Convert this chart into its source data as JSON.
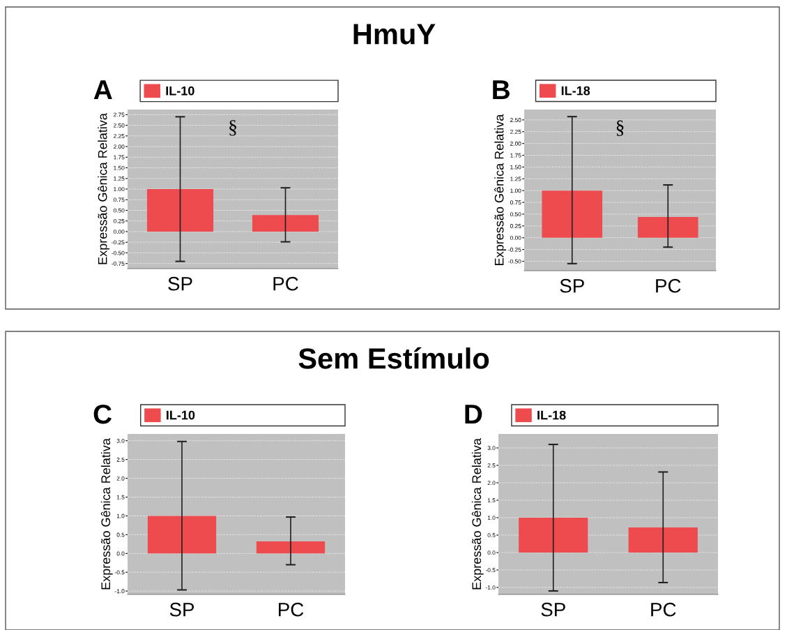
{
  "chart_data": [
    {
      "type": "other",
      "title": "HmuY"
    },
    {
      "type": "bar",
      "annotations": [
        "A",
        "§"
      ],
      "ylabel": "Expressão Gênica Relativa",
      "categories": [
        "SP",
        "PC"
      ],
      "series": [
        {
          "name": "IL-10",
          "color": "#ee4b4e",
          "values": [
            1.0,
            0.39
          ],
          "errors": [
            [
              -0.7,
              2.7
            ],
            [
              -0.24,
              1.03
            ]
          ]
        }
      ],
      "ylim": [
        -0.87,
        2.87
      ],
      "yticks": [
        {
          "value": -0.75,
          "label": "-0.75"
        },
        {
          "value": -0.5,
          "label": "-0.50"
        },
        {
          "value": -0.25,
          "label": "-0.25"
        },
        {
          "value": 0,
          "label": "0.00"
        },
        0.25,
        {
          "value": 0.5,
          "label": "0.50"
        },
        0.75,
        {
          "value": 1,
          "label": "1.00"
        },
        1.25,
        {
          "value": 1.5,
          "label": "1.50"
        },
        1.75,
        {
          "value": 2,
          "label": "2.00"
        },
        2.25,
        {
          "value": 2.5,
          "label": "2.50"
        },
        2.75
      ],
      "grid": "y",
      "legend": "top"
    },
    {
      "type": "bar",
      "annotations": [
        "B",
        "§"
      ],
      "ylabel": "Expressão Gênica Relativa",
      "categories": [
        "SP",
        "PC"
      ],
      "series": [
        {
          "name": "IL-18",
          "color": "#ee4b4e",
          "values": [
            1.0,
            0.44
          ],
          "errors": [
            [
              -0.55,
              2.57
            ],
            [
              -0.2,
              1.12
            ]
          ]
        }
      ],
      "ylim": [
        -0.7,
        2.72
      ],
      "yticks": [
        {
          "value": -0.5,
          "label": "-0.50"
        },
        {
          "value": -0.25,
          "label": "-0.25"
        },
        {
          "value": 0,
          "label": "0.00"
        },
        0.25,
        {
          "value": 0.5,
          "label": "0.50"
        },
        0.75,
        {
          "value": 1,
          "label": "1.00"
        },
        1.25,
        {
          "value": 1.5,
          "label": "1.50"
        },
        1.75,
        {
          "value": 2,
          "label": "2.00"
        },
        2.25,
        {
          "value": 2.5,
          "label": "2.50"
        }
      ],
      "grid": "y",
      "legend": "top"
    },
    {
      "type": "other",
      "title": "Sem Estímulo"
    },
    {
      "type": "bar",
      "annotations": [
        "C"
      ],
      "ylabel": "Expressão Gênica Relativa",
      "categories": [
        "SP",
        "PC"
      ],
      "series": [
        {
          "name": "IL-10",
          "color": "#ee4b4e",
          "values": [
            1.0,
            0.32
          ],
          "errors": [
            [
              -0.97,
              2.98
            ],
            [
              -0.3,
              0.97
            ]
          ]
        }
      ],
      "ylim": [
        -1.09,
        3.18
      ],
      "yticks": [
        {
          "value": -1,
          "label": "-1.0"
        },
        -0.5,
        {
          "value": 0,
          "label": "0.0"
        },
        0.5,
        {
          "value": 1,
          "label": "1.0"
        },
        1.5,
        {
          "value": 2,
          "label": "2.0"
        },
        2.5,
        {
          "value": 3,
          "label": "3.0"
        }
      ],
      "grid": "y",
      "legend": "top"
    },
    {
      "type": "bar",
      "annotations": [
        "D"
      ],
      "ylabel": "Expressão Gênica Relativa",
      "categories": [
        "SP",
        "PC"
      ],
      "series": [
        {
          "name": "IL-18",
          "color": "#ee4b4e",
          "values": [
            1.0,
            0.72
          ],
          "errors": [
            [
              -1.1,
              3.1
            ],
            [
              -0.86,
              2.31
            ]
          ]
        }
      ],
      "ylim": [
        -1.2,
        3.4
      ],
      "yticks": [
        {
          "value": -1,
          "label": "-1.0"
        },
        -0.5,
        {
          "value": 0,
          "label": "0.0"
        },
        0.5,
        {
          "value": 1,
          "label": "1.0"
        },
        1.5,
        {
          "value": 2,
          "label": "2.0"
        },
        2.5,
        {
          "value": 3,
          "label": "3.0"
        }
      ],
      "grid": "y",
      "legend": "top"
    }
  ]
}
